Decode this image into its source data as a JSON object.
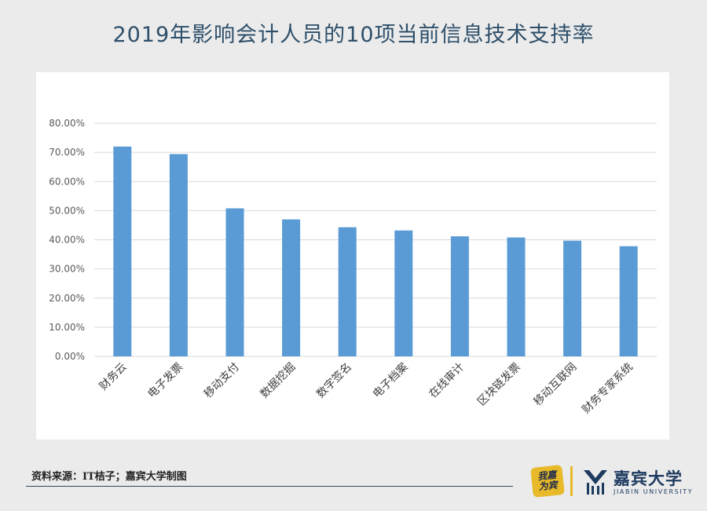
{
  "title": "2019年影响会计人员的10项当前信息技术支持率",
  "source": "资料来源：IT桔子；嘉宾大学制图",
  "branding": {
    "badge_line1": "我嘉",
    "badge_line2": "为宾",
    "name": "嘉宾大学",
    "sub": "JIABIN UNIVERSITY",
    "badge_color": "#e8b928",
    "brand_color": "#1d3a5f",
    "mark_icon": "jiabin-wave-mark-icon"
  },
  "colors": {
    "bar": "#5b9bd5",
    "grid": "#d9d9d9",
    "tick_text": "#595959",
    "title": "#2e4f6a"
  },
  "chart_data": {
    "type": "bar",
    "title": "",
    "xlabel": "",
    "ylabel": "",
    "categories": [
      "财务云",
      "电子发票",
      "移动支付",
      "数据挖掘",
      "数字签名",
      "电子档案",
      "在线审计",
      "区块链发票",
      "移动互联网",
      "财务专家系统"
    ],
    "values": [
      72.0,
      69.4,
      50.8,
      47.0,
      44.3,
      43.2,
      41.2,
      40.8,
      39.7,
      37.8
    ],
    "ylim": [
      0,
      80
    ],
    "yticks": [
      "0.00%",
      "10.00%",
      "20.00%",
      "30.00%",
      "40.00%",
      "50.00%",
      "60.00%",
      "70.00%",
      "80.00%"
    ],
    "grid": true,
    "legend": "none"
  }
}
